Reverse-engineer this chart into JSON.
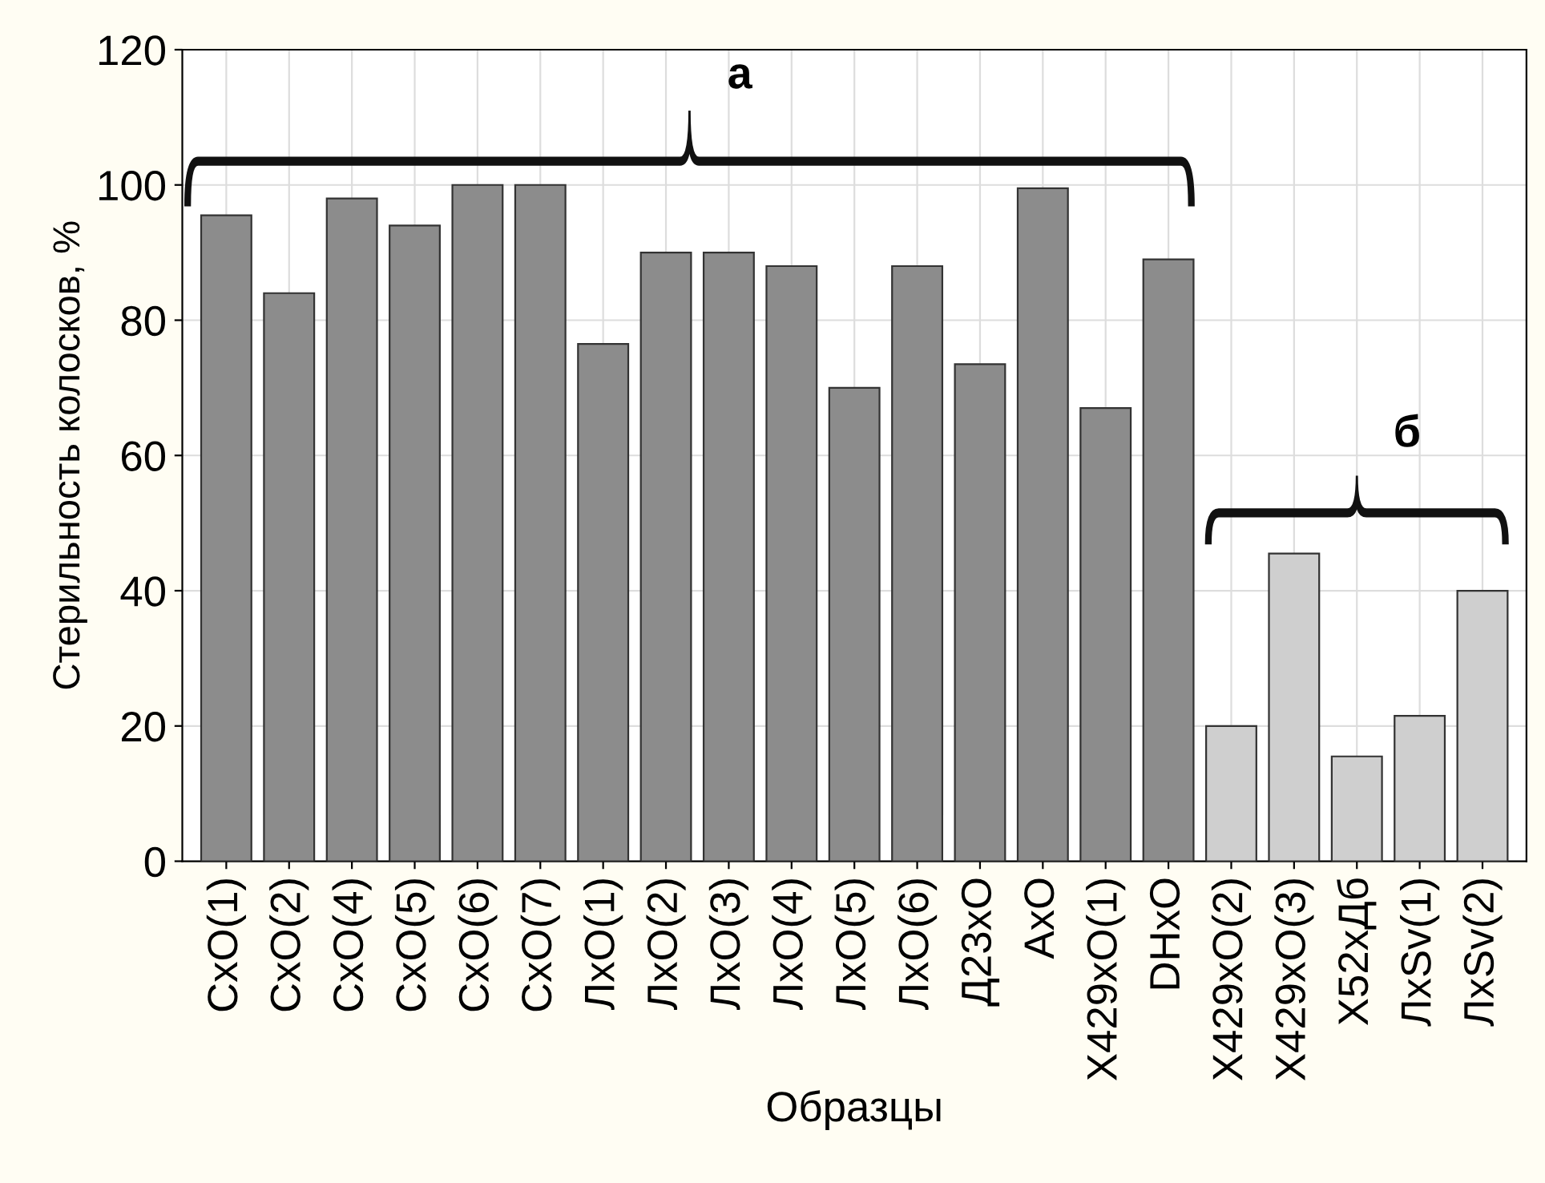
{
  "chart_data": {
    "type": "bar",
    "xlabel": "Образцы",
    "ylabel": "Стерильность колосков, %",
    "categories": [
      "CxO(1)",
      "CxO(2)",
      "CxO(4)",
      "CxO(5)",
      "CxO(6)",
      "CxO(7)",
      "ЛxO(1)",
      "ЛxO(2)",
      "ЛxO(3)",
      "ЛxO(4)",
      "ЛxO(5)",
      "ЛxO(6)",
      "Д23xO",
      "AxO",
      "X429xO(1)",
      "DHxO",
      "X429xO(2)",
      "X429xO(3)",
      "X52xДб",
      "ЛxSv(1)",
      "ЛxSv(2)"
    ],
    "values": [
      95.5,
      84,
      98,
      94,
      100,
      100,
      76.5,
      90,
      90,
      88,
      70,
      88,
      73.5,
      99.5,
      67,
      89,
      20,
      45.5,
      15.5,
      21.5,
      40
    ],
    "colors": [
      "#8c8c8c",
      "#8c8c8c",
      "#8c8c8c",
      "#8c8c8c",
      "#8c8c8c",
      "#8c8c8c",
      "#8c8c8c",
      "#8c8c8c",
      "#8c8c8c",
      "#8c8c8c",
      "#8c8c8c",
      "#8c8c8c",
      "#8c8c8c",
      "#8c8c8c",
      "#8c8c8c",
      "#8c8c8c",
      "#cfcfcf",
      "#cfcfcf",
      "#cfcfcf",
      "#cfcfcf",
      "#cfcfcf"
    ],
    "ylim": [
      0,
      120
    ],
    "yticks": [
      0,
      20,
      40,
      60,
      80,
      100,
      120
    ],
    "grid": true,
    "annotations": [
      "а",
      "б"
    ]
  }
}
